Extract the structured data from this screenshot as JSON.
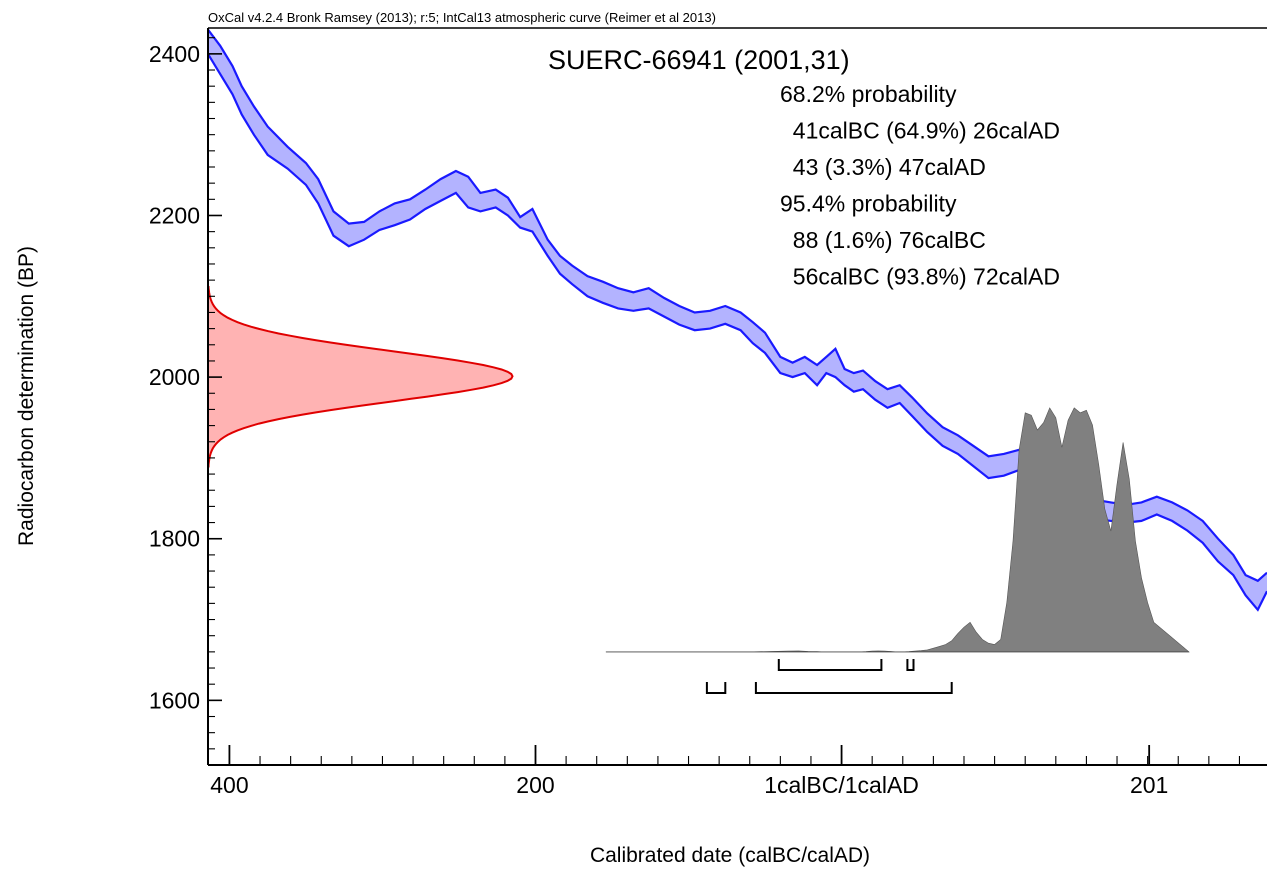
{
  "chart_data": {
    "type": "area",
    "header": "OxCal v4.2.4 Bronk Ramsey (2013); r:5; IntCal13 atmospheric curve (Reimer et al 2013)",
    "title": "SUERC-66941 (2001,31)",
    "xlabel": "Calibrated date (calBC/calAD)",
    "ylabel": "Radiocarbon determination (BP)",
    "xlim": [
      -414,
      278
    ],
    "ylim": [
      1520,
      2432
    ],
    "x_ticks": [
      {
        "value": -400,
        "label": "400"
      },
      {
        "value": -200,
        "label": "200"
      },
      {
        "value": 0,
        "label": "1calBC/1calAD"
      },
      {
        "value": 201,
        "label": "201"
      }
    ],
    "y_ticks": [
      {
        "value": 1600,
        "label": "1600"
      },
      {
        "value": 1800,
        "label": "1800"
      },
      {
        "value": 2000,
        "label": "2000"
      },
      {
        "value": 2200,
        "label": "2200"
      },
      {
        "value": 2400,
        "label": "2400"
      }
    ],
    "probability_text": [
      "68.2% probability",
      "  41calBC (64.9%) 26calAD",
      "  43 (3.3%) 47calAD",
      "95.4% probability",
      "  88 (1.6%) 76calBC",
      "  56calBC (93.8%) 72calAD"
    ],
    "calibration_curve": {
      "color": "#1a1aff",
      "fill": "#b3b3ff",
      "x": [
        -414,
        -406,
        -398,
        -392,
        -384,
        -375,
        -362,
        -350,
        -342,
        -332,
        -322,
        -312,
        -302,
        -292,
        -282,
        -272,
        -262,
        -252,
        -244,
        -236,
        -226,
        -218,
        -210,
        -202,
        -192,
        -184,
        -176,
        -166,
        -156,
        -146,
        -136,
        -126,
        -116,
        -106,
        -96,
        -86,
        -76,
        -66,
        -58,
        -50,
        -40,
        -32,
        -24,
        -16,
        -10,
        -4,
        2,
        8,
        14,
        22,
        30,
        38,
        46,
        56,
        66,
        76,
        86,
        96,
        106,
        116,
        126,
        136,
        146,
        156,
        166,
        176,
        186,
        196,
        206,
        216,
        226,
        236,
        246,
        256,
        264,
        272,
        278
      ],
      "upper": [
        2430,
        2410,
        2385,
        2360,
        2335,
        2310,
        2285,
        2265,
        2245,
        2205,
        2190,
        2192,
        2205,
        2215,
        2220,
        2232,
        2245,
        2255,
        2248,
        2228,
        2232,
        2222,
        2198,
        2208,
        2170,
        2150,
        2138,
        2125,
        2118,
        2110,
        2105,
        2110,
        2098,
        2088,
        2080,
        2082,
        2088,
        2080,
        2068,
        2055,
        2025,
        2018,
        2025,
        2015,
        2025,
        2035,
        2010,
        2005,
        2008,
        1995,
        1985,
        1990,
        1975,
        1955,
        1938,
        1928,
        1915,
        1902,
        1905,
        1910,
        1900,
        1862,
        1850,
        1848,
        1848,
        1845,
        1842,
        1845,
        1852,
        1845,
        1835,
        1822,
        1800,
        1780,
        1755,
        1748,
        1758
      ],
      "lower": [
        2400,
        2375,
        2350,
        2325,
        2300,
        2275,
        2258,
        2238,
        2215,
        2175,
        2162,
        2170,
        2182,
        2188,
        2195,
        2208,
        2218,
        2228,
        2210,
        2205,
        2210,
        2200,
        2185,
        2180,
        2150,
        2128,
        2115,
        2100,
        2092,
        2085,
        2082,
        2085,
        2075,
        2065,
        2058,
        2060,
        2066,
        2058,
        2042,
        2030,
        2005,
        2000,
        2005,
        1990,
        2005,
        2000,
        1990,
        1982,
        1985,
        1972,
        1962,
        1968,
        1952,
        1932,
        1915,
        1905,
        1890,
        1875,
        1878,
        1885,
        1875,
        1840,
        1826,
        1825,
        1825,
        1822,
        1820,
        1822,
        1830,
        1822,
        1810,
        1795,
        1772,
        1755,
        1730,
        1712,
        1735
      ]
    },
    "radiocarbon_distribution": {
      "color": "#e00000",
      "fill": "#ffb3b3",
      "mean": 2001,
      "sigma": 31
    },
    "calibrated_distribution": {
      "color": "#808080",
      "baseline_y": 1660,
      "x_range": [
        -154,
        227
      ],
      "x": [
        -154,
        -60,
        -45,
        -35,
        -28,
        -22,
        -16,
        -12,
        -8,
        -4,
        0,
        4,
        8,
        12,
        16,
        20,
        24,
        28,
        32,
        36,
        40,
        44,
        48,
        52,
        56,
        60,
        64,
        68,
        72,
        76,
        80,
        84,
        88,
        92,
        96,
        100,
        104,
        108,
        112,
        116,
        120,
        124,
        128,
        132,
        136,
        140,
        144,
        148,
        152,
        156,
        160,
        164,
        168,
        172,
        176,
        180,
        184,
        188,
        192,
        196,
        200,
        204,
        227
      ],
      "dens": [
        0,
        0,
        0.002,
        0.003,
        0.004,
        0.002,
        0.001,
        0,
        0,
        0,
        0,
        0,
        0,
        0,
        0.001,
        0.003,
        0.004,
        0.003,
        0.002,
        0,
        0,
        0.001,
        0.003,
        0.005,
        0.008,
        0.015,
        0.022,
        0.03,
        0.045,
        0.075,
        0.1,
        0.12,
        0.08,
        0.05,
        0.035,
        0.03,
        0.05,
        0.2,
        0.45,
        0.82,
        0.97,
        0.96,
        0.9,
        0.93,
        0.99,
        0.95,
        0.83,
        0.94,
        0.99,
        0.97,
        0.98,
        0.92,
        0.76,
        0.58,
        0.49,
        0.68,
        0.85,
        0.7,
        0.45,
        0.3,
        0.2,
        0.12,
        0
      ]
    },
    "hpd_ranges_68": [
      [
        -41,
        26
      ],
      [
        43,
        47
      ]
    ],
    "hpd_ranges_95": [
      [
        -88,
        -76
      ],
      [
        -56,
        72
      ]
    ]
  }
}
